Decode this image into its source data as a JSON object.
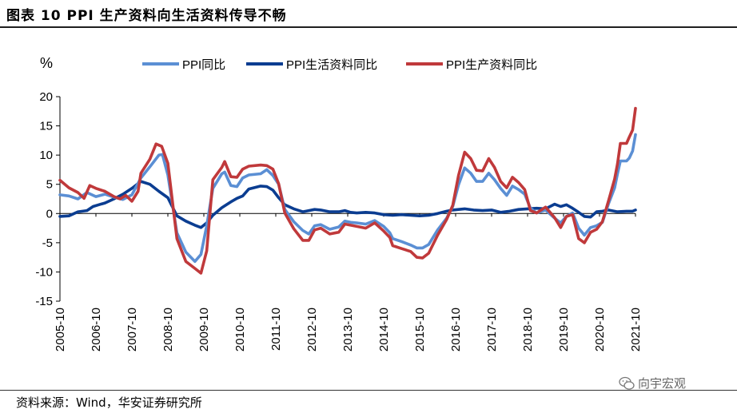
{
  "header": {
    "title": "图表 10 PPI 生产资料向生活资料传导不畅"
  },
  "footer": {
    "source": "资料来源：Wind，华安证券研究所",
    "watermark": "向宇宏观"
  },
  "colors": {
    "ppi": "#5b8fd4",
    "living": "#0b3d91",
    "production": "#c0393b",
    "axis": "#000000"
  },
  "chart_data": {
    "type": "line",
    "ylabel": "%",
    "ylim": [
      -15,
      20
    ],
    "yticks": [
      -15,
      -10,
      -5,
      0,
      5,
      10,
      15,
      20
    ],
    "x_tick_labels": [
      "2005-10",
      "2006-10",
      "2007-10",
      "2008-10",
      "2009-10",
      "2010-10",
      "2011-10",
      "2012-10",
      "2013-10",
      "2014-10",
      "2015-10",
      "2016-10",
      "2017-10",
      "2018-10",
      "2019-10",
      "2020-10",
      "2021-10"
    ],
    "x_start": 2005.75,
    "x_end": 2021.75,
    "legend_position": "top",
    "series": [
      {
        "key": "ppi",
        "name": "PPI同比",
        "points": [
          [
            2005.75,
            3.2
          ],
          [
            2006.0,
            3.0
          ],
          [
            2006.25,
            2.5
          ],
          [
            2006.5,
            3.6
          ],
          [
            2006.75,
            2.9
          ],
          [
            2007.0,
            3.3
          ],
          [
            2007.25,
            2.8
          ],
          [
            2007.5,
            2.4
          ],
          [
            2007.75,
            3.2
          ],
          [
            2008.0,
            6.1
          ],
          [
            2008.25,
            8.0
          ],
          [
            2008.5,
            10.0
          ],
          [
            2008.6,
            10.1
          ],
          [
            2008.75,
            6.6
          ],
          [
            2009.0,
            -3.3
          ],
          [
            2009.25,
            -6.6
          ],
          [
            2009.5,
            -8.2
          ],
          [
            2009.67,
            -7.0
          ],
          [
            2009.83,
            -2.1
          ],
          [
            2010.0,
            4.3
          ],
          [
            2010.25,
            6.8
          ],
          [
            2010.33,
            7.1
          ],
          [
            2010.5,
            4.8
          ],
          [
            2010.67,
            4.6
          ],
          [
            2010.83,
            6.1
          ],
          [
            2011.0,
            6.6
          ],
          [
            2011.33,
            6.8
          ],
          [
            2011.5,
            7.5
          ],
          [
            2011.67,
            6.5
          ],
          [
            2011.83,
            5.0
          ],
          [
            2012.0,
            0.7
          ],
          [
            2012.25,
            -1.4
          ],
          [
            2012.5,
            -2.9
          ],
          [
            2012.67,
            -3.5
          ],
          [
            2012.83,
            -2.1
          ],
          [
            2013.0,
            -1.9
          ],
          [
            2013.25,
            -2.7
          ],
          [
            2013.5,
            -2.3
          ],
          [
            2013.67,
            -1.3
          ],
          [
            2013.83,
            -1.5
          ],
          [
            2014.0,
            -1.6
          ],
          [
            2014.25,
            -1.8
          ],
          [
            2014.5,
            -1.2
          ],
          [
            2014.75,
            -2.2
          ],
          [
            2014.92,
            -3.3
          ],
          [
            2015.0,
            -4.3
          ],
          [
            2015.25,
            -4.8
          ],
          [
            2015.5,
            -5.4
          ],
          [
            2015.67,
            -5.9
          ],
          [
            2015.83,
            -5.9
          ],
          [
            2016.0,
            -5.3
          ],
          [
            2016.25,
            -2.8
          ],
          [
            2016.5,
            -0.8
          ],
          [
            2016.67,
            1.2
          ],
          [
            2016.83,
            4.9
          ],
          [
            2017.0,
            7.8
          ],
          [
            2017.17,
            6.9
          ],
          [
            2017.33,
            5.5
          ],
          [
            2017.5,
            5.5
          ],
          [
            2017.67,
            6.9
          ],
          [
            2017.83,
            5.8
          ],
          [
            2018.0,
            4.3
          ],
          [
            2018.17,
            3.1
          ],
          [
            2018.33,
            4.7
          ],
          [
            2018.5,
            4.1
          ],
          [
            2018.67,
            3.3
          ],
          [
            2018.83,
            0.9
          ],
          [
            2019.0,
            0.1
          ],
          [
            2019.25,
            0.6
          ],
          [
            2019.5,
            -0.8
          ],
          [
            2019.67,
            -1.6
          ],
          [
            2019.83,
            -0.5
          ],
          [
            2020.0,
            0.1
          ],
          [
            2020.17,
            -2.5
          ],
          [
            2020.33,
            -3.7
          ],
          [
            2020.5,
            -2.4
          ],
          [
            2020.67,
            -2.1
          ],
          [
            2020.83,
            -1.5
          ],
          [
            2021.0,
            1.7
          ],
          [
            2021.17,
            4.4
          ],
          [
            2021.25,
            6.8
          ],
          [
            2021.33,
            9.0
          ],
          [
            2021.5,
            9.0
          ],
          [
            2021.58,
            9.5
          ],
          [
            2021.67,
            10.7
          ],
          [
            2021.75,
            13.5
          ]
        ]
      },
      {
        "key": "living",
        "name": "PPI生活资料同比",
        "points": [
          [
            2005.75,
            -0.5
          ],
          [
            2006.0,
            -0.4
          ],
          [
            2006.25,
            0.3
          ],
          [
            2006.5,
            0.5
          ],
          [
            2006.67,
            1.2
          ],
          [
            2006.83,
            1.5
          ],
          [
            2007.0,
            1.8
          ],
          [
            2007.25,
            2.5
          ],
          [
            2007.5,
            3.3
          ],
          [
            2007.75,
            4.3
          ],
          [
            2008.0,
            5.5
          ],
          [
            2008.25,
            5.0
          ],
          [
            2008.5,
            3.8
          ],
          [
            2008.75,
            2.7
          ],
          [
            2009.0,
            -0.4
          ],
          [
            2009.25,
            -1.3
          ],
          [
            2009.5,
            -2.0
          ],
          [
            2009.67,
            -2.4
          ],
          [
            2009.83,
            -1.6
          ],
          [
            2010.0,
            -0.3
          ],
          [
            2010.25,
            1.0
          ],
          [
            2010.5,
            2.0
          ],
          [
            2010.67,
            2.6
          ],
          [
            2010.83,
            3.0
          ],
          [
            2011.0,
            4.2
          ],
          [
            2011.33,
            4.7
          ],
          [
            2011.5,
            4.6
          ],
          [
            2011.67,
            4.0
          ],
          [
            2011.83,
            2.7
          ],
          [
            2012.0,
            1.5
          ],
          [
            2012.25,
            0.8
          ],
          [
            2012.5,
            0.3
          ],
          [
            2012.67,
            0.5
          ],
          [
            2012.83,
            0.7
          ],
          [
            2013.0,
            0.6
          ],
          [
            2013.25,
            0.3
          ],
          [
            2013.5,
            0.3
          ],
          [
            2013.67,
            0.5
          ],
          [
            2013.83,
            0.2
          ],
          [
            2014.0,
            0.1
          ],
          [
            2014.25,
            0.2
          ],
          [
            2014.5,
            0.1
          ],
          [
            2014.75,
            -0.2
          ],
          [
            2015.0,
            -0.3
          ],
          [
            2015.25,
            -0.2
          ],
          [
            2015.5,
            -0.3
          ],
          [
            2015.75,
            -0.4
          ],
          [
            2016.0,
            -0.3
          ],
          [
            2016.25,
            0.0
          ],
          [
            2016.5,
            0.4
          ],
          [
            2016.67,
            0.6
          ],
          [
            2016.83,
            0.7
          ],
          [
            2017.0,
            0.8
          ],
          [
            2017.25,
            0.6
          ],
          [
            2017.5,
            0.5
          ],
          [
            2017.75,
            0.6
          ],
          [
            2018.0,
            0.2
          ],
          [
            2018.25,
            0.4
          ],
          [
            2018.5,
            0.7
          ],
          [
            2018.75,
            0.8
          ],
          [
            2019.0,
            0.9
          ],
          [
            2019.25,
            0.8
          ],
          [
            2019.5,
            1.6
          ],
          [
            2019.67,
            1.2
          ],
          [
            2019.83,
            1.5
          ],
          [
            2020.0,
            0.9
          ],
          [
            2020.17,
            0.2
          ],
          [
            2020.33,
            -0.5
          ],
          [
            2020.5,
            -0.6
          ],
          [
            2020.67,
            0.3
          ],
          [
            2020.83,
            0.4
          ],
          [
            2021.0,
            0.6
          ],
          [
            2021.25,
            0.3
          ],
          [
            2021.5,
            0.4
          ],
          [
            2021.67,
            0.4
          ],
          [
            2021.75,
            0.6
          ]
        ]
      },
      {
        "key": "production",
        "name": "PPI生产资料同比",
        "points": [
          [
            2005.75,
            5.7
          ],
          [
            2006.0,
            4.4
          ],
          [
            2006.25,
            3.6
          ],
          [
            2006.42,
            2.6
          ],
          [
            2006.58,
            4.8
          ],
          [
            2006.75,
            4.3
          ],
          [
            2007.0,
            3.8
          ],
          [
            2007.25,
            2.9
          ],
          [
            2007.42,
            2.5
          ],
          [
            2007.58,
            3.1
          ],
          [
            2007.75,
            2.1
          ],
          [
            2007.92,
            3.8
          ],
          [
            2008.0,
            6.9
          ],
          [
            2008.25,
            9.3
          ],
          [
            2008.42,
            11.9
          ],
          [
            2008.58,
            11.5
          ],
          [
            2008.75,
            8.6
          ],
          [
            2009.0,
            -4.3
          ],
          [
            2009.25,
            -8.2
          ],
          [
            2009.5,
            -9.4
          ],
          [
            2009.67,
            -10.2
          ],
          [
            2009.83,
            -6.4
          ],
          [
            2010.0,
            5.8
          ],
          [
            2010.25,
            7.9
          ],
          [
            2010.33,
            8.9
          ],
          [
            2010.5,
            6.3
          ],
          [
            2010.67,
            6.2
          ],
          [
            2010.83,
            7.6
          ],
          [
            2011.0,
            8.1
          ],
          [
            2011.33,
            8.3
          ],
          [
            2011.5,
            8.2
          ],
          [
            2011.67,
            7.6
          ],
          [
            2011.83,
            5.1
          ],
          [
            2012.0,
            0.1
          ],
          [
            2012.25,
            -2.6
          ],
          [
            2012.5,
            -4.6
          ],
          [
            2012.67,
            -4.6
          ],
          [
            2012.83,
            -2.8
          ],
          [
            2013.0,
            -2.5
          ],
          [
            2013.25,
            -3.5
          ],
          [
            2013.5,
            -3.2
          ],
          [
            2013.67,
            -1.8
          ],
          [
            2013.83,
            -2.0
          ],
          [
            2014.0,
            -2.2
          ],
          [
            2014.25,
            -2.5
          ],
          [
            2014.5,
            -1.6
          ],
          [
            2014.75,
            -3.0
          ],
          [
            2014.92,
            -4.1
          ],
          [
            2015.0,
            -5.5
          ],
          [
            2015.25,
            -6.0
          ],
          [
            2015.5,
            -6.5
          ],
          [
            2015.67,
            -7.5
          ],
          [
            2015.83,
            -7.6
          ],
          [
            2016.0,
            -6.8
          ],
          [
            2016.25,
            -3.7
          ],
          [
            2016.5,
            -1.0
          ],
          [
            2016.67,
            1.4
          ],
          [
            2016.83,
            6.5
          ],
          [
            2017.0,
            10.5
          ],
          [
            2017.17,
            9.4
          ],
          [
            2017.33,
            7.4
          ],
          [
            2017.5,
            7.3
          ],
          [
            2017.67,
            9.4
          ],
          [
            2017.83,
            7.9
          ],
          [
            2018.0,
            5.5
          ],
          [
            2018.17,
            4.4
          ],
          [
            2018.33,
            6.2
          ],
          [
            2018.5,
            5.3
          ],
          [
            2018.67,
            4.1
          ],
          [
            2018.83,
            0.5
          ],
          [
            2019.0,
            0.1
          ],
          [
            2019.25,
            1.1
          ],
          [
            2019.5,
            -0.7
          ],
          [
            2019.67,
            -2.4
          ],
          [
            2019.83,
            -0.5
          ],
          [
            2020.0,
            -0.2
          ],
          [
            2020.17,
            -4.3
          ],
          [
            2020.33,
            -5.0
          ],
          [
            2020.5,
            -3.2
          ],
          [
            2020.67,
            -2.7
          ],
          [
            2020.83,
            -1.4
          ],
          [
            2021.0,
            2.2
          ],
          [
            2021.17,
            5.9
          ],
          [
            2021.25,
            8.5
          ],
          [
            2021.33,
            12.0
          ],
          [
            2021.5,
            12.0
          ],
          [
            2021.58,
            13.1
          ],
          [
            2021.67,
            14.3
          ],
          [
            2021.75,
            18.0
          ]
        ]
      }
    ]
  }
}
